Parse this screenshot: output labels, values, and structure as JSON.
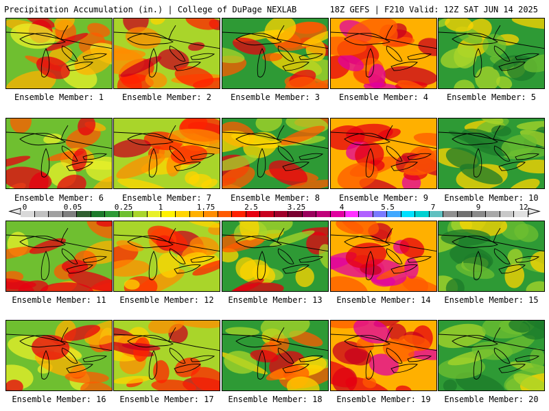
{
  "header": {
    "left": "Precipitation Accumulation (in.) | College of DuPage NEXLAB",
    "right": "18Z GEFS | F210 Valid: 12Z SAT JUN 14 2025"
  },
  "colorbar": {
    "tick_labels": [
      "0",
      "0.05",
      "0.25",
      "1",
      "1.75",
      "2.5",
      "3.25",
      "4",
      "5.5",
      "7",
      "9",
      "12"
    ],
    "colors": [
      "#d9d9d9",
      "#c0c0c0",
      "#a0a0a0",
      "#7f7f7f",
      "#2f5f2f",
      "#1c7a2a",
      "#2e9a35",
      "#6fbf30",
      "#a9d52a",
      "#e8f02a",
      "#fff200",
      "#ffd400",
      "#ffb000",
      "#ff8c00",
      "#ff5a00",
      "#ff2200",
      "#e60010",
      "#c8001e",
      "#a0002a",
      "#7a0030",
      "#9a005c",
      "#c0007a",
      "#e000a0",
      "#ff30ff",
      "#b060ff",
      "#7a7aff",
      "#40a8ff",
      "#00e0ff",
      "#00d0d0",
      "#60c0c0",
      "#909090",
      "#707070",
      "#8a8a8a",
      "#a8a8a8",
      "#c8c8c8",
      "#e0e0e0"
    ]
  },
  "panels": [
    {
      "label": "Ensemble Member: 1"
    },
    {
      "label": "Ensemble Member: 2"
    },
    {
      "label": "Ensemble Member: 3"
    },
    {
      "label": "Ensemble Member: 4"
    },
    {
      "label": "Ensemble Member: 5"
    },
    {
      "label": "Ensemble Member: 6"
    },
    {
      "label": "Ensemble Member: 7"
    },
    {
      "label": "Ensemble Member: 8"
    },
    {
      "label": "Ensemble Member: 9"
    },
    {
      "label": "Ensemble Member: 10"
    },
    {
      "label": "Ensemble Member: 11"
    },
    {
      "label": "Ensemble Member: 12"
    },
    {
      "label": "Ensemble Member: 13"
    },
    {
      "label": "Ensemble Member: 14"
    },
    {
      "label": "Ensemble Member: 15"
    },
    {
      "label": "Ensemble Member: 16"
    },
    {
      "label": "Ensemble Member: 17"
    },
    {
      "label": "Ensemble Member: 18"
    },
    {
      "label": "Ensemble Member: 19"
    },
    {
      "label": "Ensemble Member: 20"
    }
  ]
}
